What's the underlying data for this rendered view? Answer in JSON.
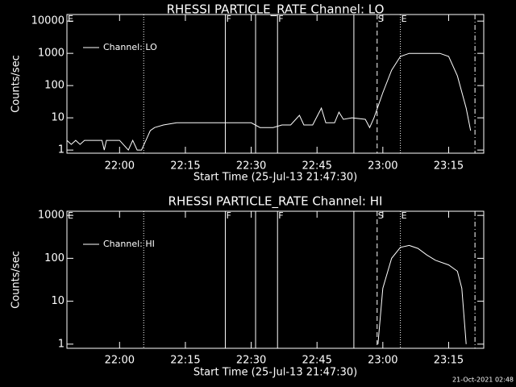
{
  "chart_data": [
    {
      "type": "line",
      "title": "RHESSI PARTICLE_RATE Channel: LO",
      "x_label": "Start Time (25-Jul-13 21:47:30)",
      "y_label": "Counts/sec",
      "log_y": true,
      "xlim": [
        1308,
        1403
      ],
      "ylim": [
        0.8,
        16000
      ],
      "xticks": [
        {
          "value": 1320,
          "label": "22:00"
        },
        {
          "value": 1335,
          "label": "22:15"
        },
        {
          "value": 1350,
          "label": "22:30"
        },
        {
          "value": 1365,
          "label": "22:45"
        },
        {
          "value": 1380,
          "label": "23:00"
        },
        {
          "value": 1395,
          "label": "23:15"
        }
      ],
      "yticks": [
        1,
        10,
        100,
        1000,
        10000
      ],
      "legend": "upper left",
      "markers": [
        {
          "x": 1308,
          "label": "E",
          "style": "solid"
        },
        {
          "x": 1325.5,
          "style": "dotted"
        },
        {
          "x": 1344.1,
          "label": "F",
          "style": "solid"
        },
        {
          "x": 1351,
          "style": "solid"
        },
        {
          "x": 1356,
          "label": "F",
          "style": "solid"
        },
        {
          "x": 1373.4,
          "style": "solid"
        },
        {
          "x": 1378.7,
          "label": "S",
          "style": "dashed"
        },
        {
          "x": 1384,
          "label": "E",
          "style": "dotted"
        },
        {
          "x": 1401,
          "style": "dashdot"
        }
      ],
      "series": [
        {
          "name": "Channel: LO",
          "color": "#ffffff",
          "x": [
            1308,
            1309,
            1310,
            1311,
            1312,
            1316,
            1316.5,
            1317,
            1320,
            1322,
            1323,
            1324,
            1325,
            1326,
            1327,
            1328,
            1330,
            1333,
            1336,
            1340,
            1345,
            1350,
            1352,
            1355,
            1357,
            1359,
            1361,
            1362,
            1364,
            1366,
            1367,
            1369,
            1370,
            1371,
            1373,
            1376,
            1377,
            1378,
            1380,
            1382,
            1384,
            1386,
            1390,
            1393,
            1395,
            1397,
            1399,
            1400
          ],
          "values": [
            2,
            1.5,
            2,
            1.5,
            2,
            2,
            1,
            2,
            2,
            1,
            2,
            1,
            1,
            2,
            4,
            5,
            6,
            7,
            7,
            7,
            7,
            7,
            5,
            5,
            6,
            6,
            12,
            6,
            6,
            20,
            7,
            7,
            15,
            9,
            10,
            9,
            5,
            10,
            60,
            300,
            800,
            1000,
            1000,
            1000,
            800,
            200,
            20,
            4
          ]
        }
      ]
    },
    {
      "type": "line",
      "title": "RHESSI PARTICLE_RATE Channel: HI",
      "x_label": "Start Time (25-Jul-13 21:47:30)",
      "y_label": "Counts/sec",
      "log_y": true,
      "xlim": [
        1308,
        1403
      ],
      "ylim": [
        0.8,
        1250
      ],
      "xticks": [
        {
          "value": 1320,
          "label": "22:00"
        },
        {
          "value": 1335,
          "label": "22:15"
        },
        {
          "value": 1350,
          "label": "22:30"
        },
        {
          "value": 1365,
          "label": "22:45"
        },
        {
          "value": 1380,
          "label": "23:00"
        },
        {
          "value": 1395,
          "label": "23:15"
        }
      ],
      "yticks": [
        1,
        10,
        100,
        1000
      ],
      "legend": "upper left",
      "markers": [
        {
          "x": 1308,
          "label": "E",
          "style": "solid"
        },
        {
          "x": 1325.5,
          "style": "dotted"
        },
        {
          "x": 1344.1,
          "label": "F",
          "style": "solid"
        },
        {
          "x": 1351,
          "style": "solid"
        },
        {
          "x": 1356,
          "label": "F",
          "style": "solid"
        },
        {
          "x": 1373.4,
          "style": "solid"
        },
        {
          "x": 1378.7,
          "label": "S",
          "style": "dashed"
        },
        {
          "x": 1384,
          "label": "E",
          "style": "dotted"
        },
        {
          "x": 1401,
          "style": "dashdot"
        }
      ],
      "series": [
        {
          "name": "Channel: HI",
          "color": "#ffffff",
          "x": [
            1378.9,
            1380,
            1382,
            1384,
            1386,
            1388,
            1390,
            1392,
            1395,
            1397,
            1398,
            1399
          ],
          "values": [
            1,
            20,
            100,
            180,
            200,
            170,
            120,
            90,
            70,
            50,
            20,
            1
          ]
        }
      ]
    }
  ],
  "footer": "21-Oct-2021 02:48"
}
